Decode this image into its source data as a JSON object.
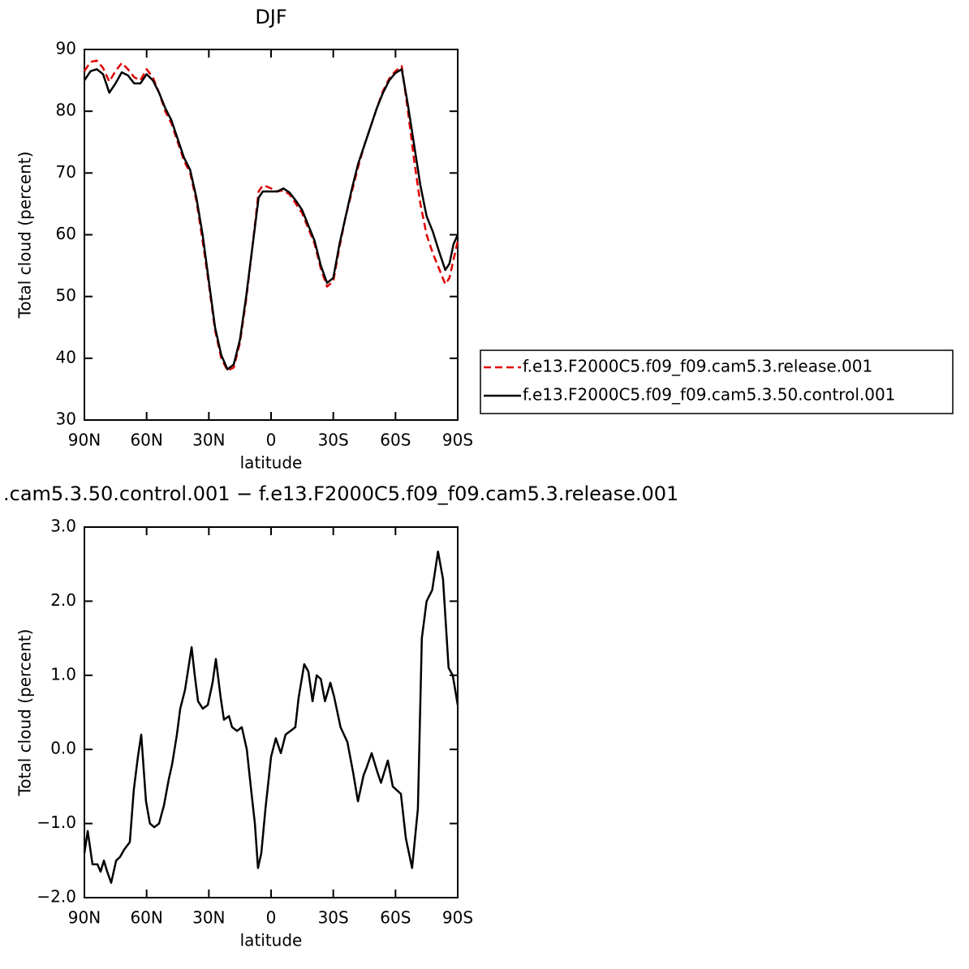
{
  "chart_data": [
    {
      "type": "line",
      "title": "DJF",
      "xlabel": "latitude",
      "ylabel": "Total cloud (percent)",
      "xlim": [
        90,
        -90
      ],
      "xticks": [
        {
          "value": 90,
          "label": "90N"
        },
        {
          "value": 60,
          "label": "60N"
        },
        {
          "value": 30,
          "label": "30N"
        },
        0,
        {
          "value": -30,
          "label": "30S"
        },
        {
          "value": -60,
          "label": "60S"
        },
        {
          "value": -90,
          "label": "90S"
        }
      ],
      "ylim": [
        30,
        90
      ],
      "yticks": [
        30,
        40,
        50,
        60,
        70,
        80,
        90
      ],
      "legend": "right",
      "x": [
        90,
        87,
        84,
        81,
        78,
        75,
        72,
        69,
        66,
        63,
        60,
        57,
        54,
        51,
        48,
        45,
        42,
        39,
        36,
        33,
        30,
        27,
        24,
        21,
        18,
        15,
        12,
        9,
        6,
        4,
        2,
        0,
        -3,
        -6,
        -9,
        -12,
        -15,
        -18,
        -21,
        -24,
        -27,
        -30,
        -33,
        -36,
        -39,
        -42,
        -45,
        -48,
        -51,
        -54,
        -57,
        -60,
        -63,
        -66,
        -69,
        -72,
        -75,
        -78,
        -81,
        -84,
        -86,
        -88,
        -90
      ],
      "series": [
        {
          "name": "f.e13.F2000C5.f09_f09.cam5.3.release.001",
          "color": "#e00000",
          "dash": true,
          "values": [
            86.5,
            88,
            88.2,
            87,
            84.8,
            86.5,
            87.8,
            86.8,
            85.5,
            85,
            86.8,
            85.5,
            83,
            80,
            78,
            75,
            72,
            70,
            65.5,
            59,
            52,
            44.5,
            40,
            38,
            38.5,
            42.5,
            49.5,
            58,
            67,
            68,
            67.8,
            67.5,
            67,
            67.2,
            66.5,
            65,
            63.5,
            61,
            58.5,
            54.5,
            51.6,
            52.5,
            58,
            63,
            67,
            71,
            74.5,
            77.5,
            80.5,
            83.3,
            85.3,
            86.5,
            87.3,
            80,
            72,
            65,
            60,
            57,
            54.5,
            52,
            53,
            56,
            59
          ]
        },
        {
          "name": "f.e13.F2000C5.f09_f09.cam5.3.50.control.001",
          "color": "#000000",
          "dash": false,
          "values": [
            85,
            86.5,
            86.8,
            86,
            83,
            84.5,
            86.3,
            85.8,
            84.5,
            84.5,
            86,
            85,
            83,
            80.5,
            78.5,
            75.5,
            72.5,
            70.5,
            66,
            60,
            52.5,
            45,
            40.5,
            38.2,
            39,
            43,
            50,
            58,
            66,
            67,
            67,
            67,
            67,
            67.5,
            66.8,
            65.5,
            64,
            61.5,
            59,
            55,
            52.2,
            53,
            58.5,
            63,
            67.5,
            71.5,
            74.5,
            77.5,
            80.5,
            83,
            85,
            86.2,
            86.8,
            81,
            74.5,
            68,
            63,
            60.5,
            57.3,
            54.3,
            55.3,
            58.5,
            60
          ]
        }
      ]
    },
    {
      "type": "line",
      "title": ".cam5.3.50.control.001 − f.e13.F2000C5.f09_f09.cam5.3.release.001",
      "xlabel": "latitude",
      "ylabel": "Total cloud (percent)",
      "xlim": [
        90,
        -90
      ],
      "xticks": [
        {
          "value": 90,
          "label": "90N"
        },
        {
          "value": 60,
          "label": "60N"
        },
        {
          "value": 30,
          "label": "30N"
        },
        0,
        {
          "value": -30,
          "label": "30S"
        },
        {
          "value": -60,
          "label": "60S"
        },
        {
          "value": -90,
          "label": "90S"
        }
      ],
      "ylim": [
        -2,
        3
      ],
      "yticks": [
        {
          "value": -2,
          "label": "−2.0"
        },
        {
          "value": -1,
          "label": "−1.0"
        },
        {
          "value": 0,
          "label": "0.0"
        },
        {
          "value": 1,
          "label": "1.0"
        },
        {
          "value": 2,
          "label": "2.0"
        },
        {
          "value": 3,
          "label": "3.0"
        }
      ],
      "color": "#000000",
      "x": [
        90,
        88.4,
        86.1,
        83.7,
        82.2,
        80.6,
        79,
        77.1,
        74.7,
        72.8,
        70.8,
        68.1,
        66.2,
        64.2,
        62.6,
        60.3,
        58.4,
        56.3,
        54,
        51.6,
        49.3,
        47.7,
        45.4,
        43.8,
        41.5,
        38.3,
        36.8,
        35.2,
        32.9,
        30.5,
        28.2,
        26.6,
        24.3,
        22.7,
        20.3,
        18.8,
        16.4,
        14.1,
        11.7,
        9.4,
        7.8,
        6.3,
        4.7,
        2.7,
        0,
        -2.3,
        -4.7,
        -7,
        -9.4,
        -11.7,
        -13.3,
        -16,
        -18,
        -20,
        -22,
        -24,
        -26,
        -28.6,
        -30.5,
        -33.5,
        -36.8,
        -39.5,
        -41.9,
        -44.6,
        -46,
        -48.5,
        -51.2,
        -53,
        -56.3,
        -58.7,
        -62.6,
        -65,
        -68,
        -70.8,
        -72.7,
        -75,
        -77.7,
        -80.5,
        -82.9,
        -85.6,
        -87.6,
        -90
      ],
      "values": [
        -1.4,
        -1.1,
        -1.55,
        -1.55,
        -1.65,
        -1.5,
        -1.65,
        -1.8,
        -1.5,
        -1.45,
        -1.35,
        -1.25,
        -0.55,
        -0.1,
        0.2,
        -0.7,
        -1,
        -1.05,
        -1,
        -0.75,
        -0.4,
        -0.2,
        0.2,
        0.55,
        0.8,
        1.38,
        1,
        0.65,
        0.55,
        0.6,
        0.9,
        1.22,
        0.7,
        0.4,
        0.45,
        0.3,
        0.25,
        0.3,
        0,
        -0.6,
        -1,
        -1.6,
        -1.4,
        -0.8,
        -0.1,
        0.15,
        -0.05,
        0.2,
        0.25,
        0.3,
        0.7,
        1.15,
        1.05,
        0.65,
        1,
        0.95,
        0.65,
        0.9,
        0.7,
        0.3,
        0.1,
        -0.3,
        -0.7,
        -0.35,
        -0.25,
        -0.05,
        -0.3,
        -0.45,
        -0.15,
        -0.5,
        -0.6,
        -1.2,
        -1.6,
        -0.8,
        1.5,
        2,
        2.15,
        2.67,
        2.3,
        1.1,
        1,
        0.6
      ]
    }
  ]
}
